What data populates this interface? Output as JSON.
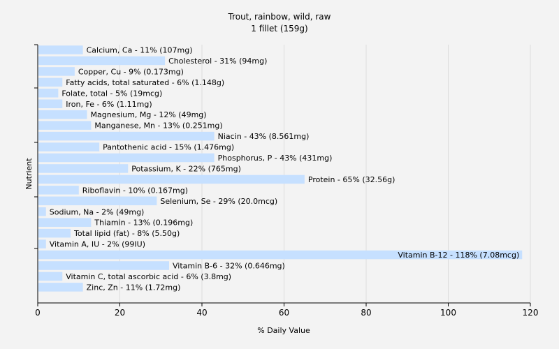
{
  "chart_data": {
    "type": "bar",
    "orientation": "horizontal",
    "title": "Trout, rainbow, wild, raw",
    "subtitle": "1 fillet (159g)",
    "xlabel": "% Daily Value",
    "ylabel": "Nutrient",
    "xlim": [
      0,
      120
    ],
    "xticks": [
      0,
      20,
      40,
      60,
      80,
      100,
      120
    ],
    "grid": true,
    "bar_color": "#c6e0ff",
    "categories": [
      "Calcium, Ca",
      "Cholesterol",
      "Copper, Cu",
      "Fatty acids, total saturated",
      "Folate, total",
      "Iron, Fe",
      "Magnesium, Mg",
      "Manganese, Mn",
      "Niacin",
      "Pantothenic acid",
      "Phosphorus, P",
      "Potassium, K",
      "Protein",
      "Riboflavin",
      "Selenium, Se",
      "Sodium, Na",
      "Thiamin",
      "Total lipid (fat)",
      "Vitamin A, IU",
      "Vitamin B-12",
      "Vitamin B-6",
      "Vitamin C, total ascorbic acid",
      "Zinc, Zn"
    ],
    "values": [
      11,
      31,
      9,
      6,
      5,
      6,
      12,
      13,
      43,
      15,
      43,
      22,
      65,
      10,
      29,
      2,
      13,
      8,
      2,
      118,
      32,
      6,
      11
    ],
    "labels": [
      "Calcium, Ca - 11% (107mg)",
      "Cholesterol - 31% (94mg)",
      "Copper, Cu - 9% (0.173mg)",
      "Fatty acids, total saturated - 6% (1.148g)",
      "Folate, total - 5% (19mcg)",
      "Iron, Fe - 6% (1.11mg)",
      "Magnesium, Mg - 12% (49mg)",
      "Manganese, Mn - 13% (0.251mg)",
      "Niacin - 43% (8.561mg)",
      "Pantothenic acid - 15% (1.476mg)",
      "Phosphorus, P - 43% (431mg)",
      "Potassium, K - 22% (765mg)",
      "Protein - 65% (32.56g)",
      "Riboflavin - 10% (0.167mg)",
      "Selenium, Se - 29% (20.0mcg)",
      "Sodium, Na - 2% (49mg)",
      "Thiamin - 13% (0.196mg)",
      "Total lipid (fat) - 8% (5.50g)",
      "Vitamin A, IU - 2% (99IU)",
      "Vitamin B-12 - 118% (7.08mcg)",
      "Vitamin B-6 - 32% (0.646mg)",
      "Vitamin C, total ascorbic acid - 6% (3.8mg)",
      "Zinc, Zn - 11% (1.72mg)"
    ]
  }
}
